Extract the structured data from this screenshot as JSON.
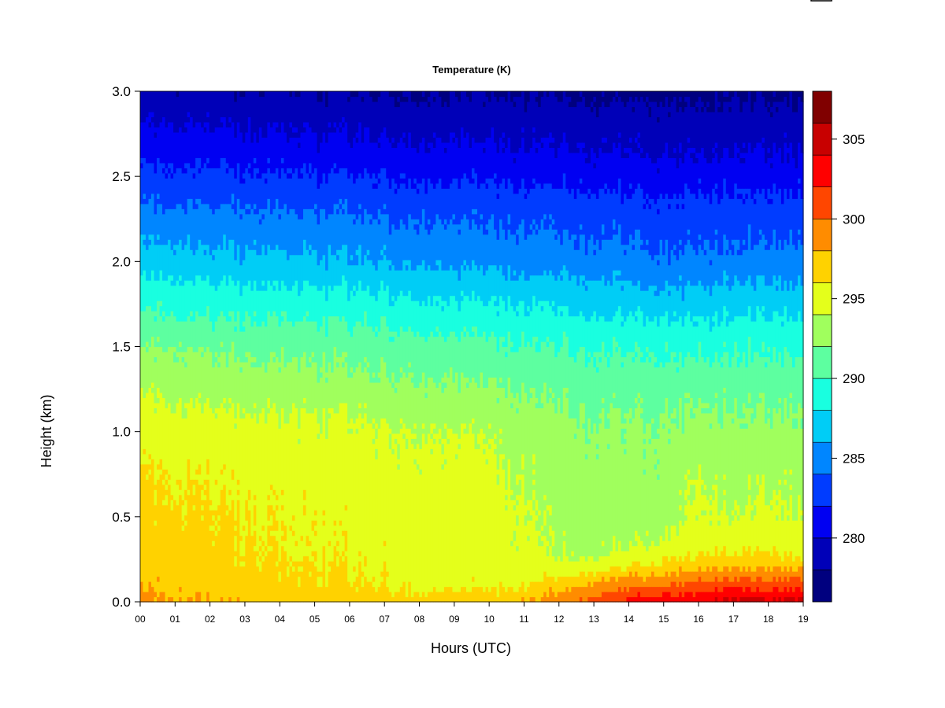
{
  "chart_data": {
    "type": "heatmap",
    "title": "Temperature (K)",
    "xlabel": "Hours (UTC)",
    "ylabel": "Height (km)",
    "xlim": [
      0,
      19
    ],
    "ylim": [
      0.0,
      3.0
    ],
    "x_ticks": [
      "00",
      "01",
      "02",
      "03",
      "04",
      "05",
      "06",
      "07",
      "08",
      "09",
      "10",
      "11",
      "12",
      "13",
      "14",
      "15",
      "16",
      "17",
      "18",
      "19"
    ],
    "y_ticks": [
      "0.0",
      "0.5",
      "1.0",
      "1.5",
      "2.0",
      "2.5",
      "3.0"
    ],
    "colorbar": {
      "range": [
        276,
        308
      ],
      "ticks": [
        280,
        285,
        290,
        295,
        300,
        305
      ],
      "levels": [
        {
          "from": 276,
          "to": 278,
          "color": "#00007f"
        },
        {
          "from": 278,
          "to": 280,
          "color": "#0000b8"
        },
        {
          "from": 280,
          "to": 282,
          "color": "#0000f2"
        },
        {
          "from": 282,
          "to": 284,
          "color": "#003cff"
        },
        {
          "from": 284,
          "to": 286,
          "color": "#0086ff"
        },
        {
          "from": 286,
          "to": 288,
          "color": "#00cdf6"
        },
        {
          "from": 288,
          "to": 290,
          "color": "#19ffe0"
        },
        {
          "from": 290,
          "to": 292,
          "color": "#5dffa0"
        },
        {
          "from": 292,
          "to": 294,
          "color": "#a0ff5d"
        },
        {
          "from": 294,
          "to": 296,
          "color": "#e4ff1b"
        },
        {
          "from": 296,
          "to": 298,
          "color": "#ffd200"
        },
        {
          "from": 298,
          "to": 300,
          "color": "#ff8c00"
        },
        {
          "from": 300,
          "to": 302,
          "color": "#ff4600"
        },
        {
          "from": 302,
          "to": 304,
          "color": "#ff0000"
        },
        {
          "from": 304,
          "to": 306,
          "color": "#c80000"
        },
        {
          "from": 306,
          "to": 308,
          "color": "#800000"
        }
      ]
    },
    "profile_heights_km": [
      0.0,
      0.1,
      0.2,
      0.3,
      0.5,
      0.7,
      1.0,
      1.2,
      1.5,
      1.8,
      2.0,
      2.3,
      2.6,
      3.0
    ],
    "hourly_profiles_K": [
      {
        "hour": 0,
        "T": [
          298.5,
          297.8,
          297.2,
          296.8,
          296.5,
          296.2,
          295.2,
          294.0,
          292.0,
          289.2,
          287.0,
          284.5,
          281.8,
          278.5
        ]
      },
      {
        "hour": 1,
        "T": [
          298.0,
          297.5,
          297.0,
          296.7,
          296.4,
          296.0,
          295.0,
          293.8,
          291.8,
          289.0,
          286.8,
          284.3,
          281.6,
          278.4
        ]
      },
      {
        "hour": 2,
        "T": [
          297.8,
          297.2,
          296.8,
          296.6,
          296.3,
          295.8,
          294.9,
          293.6,
          291.6,
          288.8,
          286.6,
          284.2,
          281.5,
          278.3
        ]
      },
      {
        "hour": 3,
        "T": [
          297.5,
          296.9,
          296.5,
          296.2,
          296.0,
          295.5,
          294.8,
          293.5,
          291.5,
          288.7,
          286.5,
          284.1,
          281.4,
          278.2
        ]
      },
      {
        "hour": 4,
        "T": [
          297.3,
          296.6,
          296.2,
          295.9,
          295.7,
          295.3,
          294.7,
          293.4,
          291.4,
          288.6,
          286.4,
          284.0,
          281.3,
          278.1
        ]
      },
      {
        "hour": 5,
        "T": [
          297.2,
          296.4,
          296.0,
          295.7,
          295.5,
          295.2,
          294.6,
          293.3,
          291.3,
          288.5,
          286.3,
          283.9,
          281.2,
          278.0
        ]
      },
      {
        "hour": 6,
        "T": [
          297.1,
          296.2,
          295.8,
          295.5,
          295.3,
          295.1,
          294.5,
          293.2,
          291.2,
          288.4,
          286.2,
          283.8,
          281.1,
          278.0
        ]
      },
      {
        "hour": 7,
        "T": [
          297.0,
          296.0,
          295.6,
          295.3,
          295.2,
          295.0,
          294.3,
          293.0,
          291.0,
          288.2,
          286.0,
          283.7,
          281.0,
          277.9
        ]
      },
      {
        "hour": 8,
        "T": [
          296.9,
          295.8,
          295.4,
          295.2,
          295.1,
          294.9,
          294.2,
          292.9,
          290.9,
          288.0,
          285.9,
          283.6,
          280.9,
          277.9
        ]
      },
      {
        "hour": 9,
        "T": [
          296.9,
          295.6,
          295.2,
          295.0,
          295.0,
          294.8,
          294.0,
          292.7,
          290.7,
          287.8,
          285.7,
          283.5,
          280.8,
          277.8
        ]
      },
      {
        "hour": 10,
        "T": [
          297.0,
          295.5,
          295.0,
          294.9,
          294.9,
          294.7,
          293.8,
          292.5,
          290.5,
          287.6,
          285.5,
          283.4,
          280.7,
          277.8
        ]
      },
      {
        "hour": 11,
        "T": [
          297.8,
          295.8,
          295.0,
          294.6,
          294.3,
          294.0,
          293.2,
          292.1,
          290.2,
          287.4,
          285.3,
          283.3,
          280.6,
          277.8
        ]
      },
      {
        "hour": 12,
        "T": [
          299.5,
          297.0,
          294.8,
          293.6,
          293.2,
          293.0,
          292.6,
          291.8,
          290.0,
          287.2,
          285.1,
          283.1,
          280.5,
          277.7
        ]
      },
      {
        "hour": 13,
        "T": [
          301.0,
          298.3,
          295.5,
          293.5,
          293.0,
          292.8,
          292.4,
          291.6,
          289.8,
          287.0,
          284.9,
          283.0,
          280.4,
          277.7
        ]
      },
      {
        "hour": 14,
        "T": [
          302.5,
          299.3,
          296.3,
          294.0,
          293.0,
          292.7,
          292.3,
          291.5,
          289.7,
          286.8,
          284.7,
          282.8,
          280.3,
          277.6
        ]
      },
      {
        "hour": 15,
        "T": [
          303.5,
          300.0,
          297.0,
          294.8,
          293.2,
          292.8,
          292.3,
          291.5,
          289.6,
          286.6,
          284.5,
          282.7,
          280.2,
          277.6
        ]
      },
      {
        "hour": 16,
        "T": [
          304.0,
          300.8,
          297.8,
          295.5,
          294.5,
          294.2,
          293.0,
          291.8,
          289.7,
          286.7,
          284.6,
          282.8,
          280.3,
          277.6
        ]
      },
      {
        "hour": 17,
        "T": [
          305.0,
          301.5,
          298.4,
          296.0,
          294.0,
          293.2,
          292.6,
          291.6,
          289.7,
          286.8,
          284.7,
          282.9,
          280.3,
          277.7
        ]
      },
      {
        "hour": 18,
        "T": [
          304.5,
          301.0,
          298.0,
          296.0,
          294.6,
          294.0,
          292.8,
          291.7,
          289.8,
          286.9,
          284.8,
          283.0,
          280.4,
          277.7
        ]
      },
      {
        "hour": 19,
        "T": [
          304.8,
          301.5,
          298.0,
          295.0,
          294.0,
          293.5,
          292.6,
          291.6,
          289.7,
          286.9,
          284.8,
          283.0,
          280.4,
          277.7
        ]
      }
    ]
  }
}
